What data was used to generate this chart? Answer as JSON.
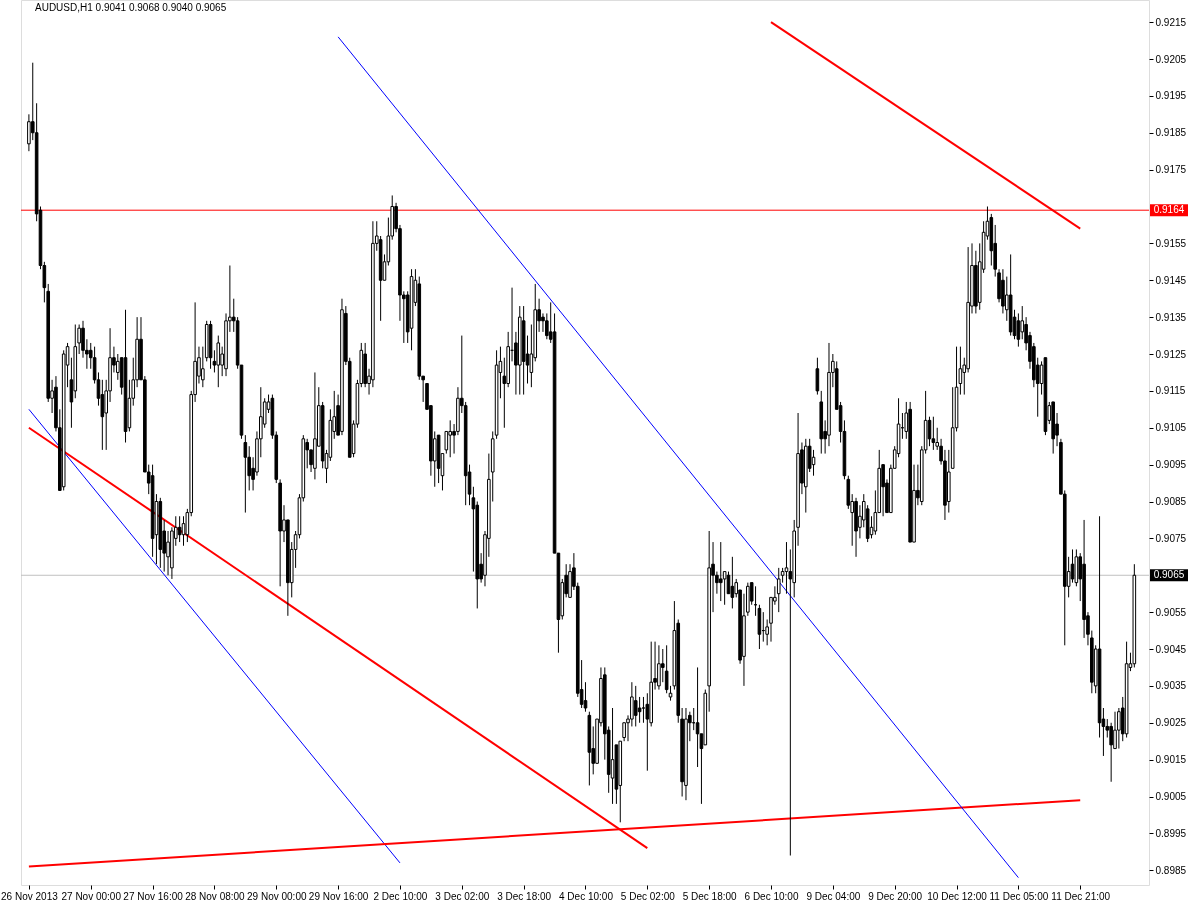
{
  "chart_data": {
    "type": "candlestick",
    "title": "AUDUSD,H1 0.9041 0.9068 0.9040 0.9065",
    "color": "#000000",
    "categories": [
      "26 Nov 2013",
      null,
      null,
      null,
      null,
      null,
      null,
      null,
      null,
      null,
      null,
      null,
      null,
      null,
      null,
      null,
      "27 Nov 00:00",
      null,
      null,
      null,
      null,
      null,
      null,
      null,
      null,
      null,
      null,
      null,
      null,
      null,
      null,
      null,
      "27 Nov 16:00",
      null,
      null,
      null,
      null,
      null,
      null,
      null,
      null,
      null,
      null,
      null,
      null,
      null,
      null,
      null,
      "28 Nov 08:00",
      null,
      null,
      null,
      null,
      null,
      null,
      null,
      null,
      null,
      null,
      null,
      null,
      null,
      null,
      null,
      "29 Nov 00:00",
      null,
      null,
      null,
      null,
      null,
      null,
      null,
      null,
      null,
      null,
      null,
      null,
      null,
      null,
      null,
      "29 Nov 16:00",
      null,
      null,
      null,
      null,
      null,
      null,
      null,
      null,
      null,
      null,
      null,
      null,
      null,
      null,
      null,
      "2 Dec 10:00",
      null,
      null,
      null,
      null,
      null,
      null,
      null,
      null,
      null,
      null,
      null,
      null,
      null,
      null,
      null,
      "3 Dec 02:00",
      null,
      null,
      null,
      null,
      null,
      null,
      null,
      null,
      null,
      null,
      null,
      null,
      null,
      null,
      null,
      "3 Dec 18:00",
      null,
      null,
      null,
      null,
      null,
      null,
      null,
      null,
      null,
      null,
      null,
      null,
      null,
      null,
      null,
      "4 Dec 10:00",
      null,
      null,
      null,
      null,
      null,
      null,
      null,
      null,
      null,
      null,
      null,
      null,
      null,
      null,
      null,
      "5 Dec 02:00",
      null,
      null,
      null,
      null,
      null,
      null,
      null,
      null,
      null,
      null,
      null,
      null,
      null,
      null,
      null,
      "5 Dec 18:00",
      null,
      null,
      null,
      null,
      null,
      null,
      null,
      null,
      null,
      null,
      null,
      null,
      null,
      null,
      null,
      "6 Dec 10:00",
      null,
      null,
      null,
      null,
      null,
      null,
      null,
      null,
      null,
      null,
      null,
      null,
      null,
      null,
      null,
      "9 Dec 04:00",
      null,
      null,
      null,
      null,
      null,
      null,
      null,
      null,
      null,
      null,
      null,
      null,
      null,
      null,
      null,
      "9 Dec 20:00",
      null,
      null,
      null,
      null,
      null,
      null,
      null,
      null,
      null,
      null,
      null,
      null,
      null,
      null,
      null,
      "10 Dec 12:00",
      null,
      null,
      null,
      null,
      null,
      null,
      null,
      null,
      null,
      null,
      null,
      null,
      null,
      null,
      null,
      "11 Dec 05:00",
      null,
      null,
      null,
      null,
      null,
      null,
      null,
      null,
      null,
      null,
      null,
      null,
      null,
      null,
      null,
      "11 Dec 21:00",
      null,
      null,
      null,
      null,
      null,
      null,
      null,
      null,
      null,
      null,
      null,
      null,
      null,
      null
    ],
    "ohlc": [
      [
        0.9182,
        0.919,
        0.918,
        0.9188
      ],
      [
        0.9188,
        0.9204,
        0.9183,
        0.9185
      ],
      [
        0.9185,
        0.9193,
        0.9161,
        0.9163
      ],
      [
        0.9164,
        0.9165,
        0.9148,
        0.9149
      ],
      [
        0.9149,
        0.915,
        0.9139,
        0.9143
      ],
      [
        0.9142,
        0.9144,
        0.9112,
        0.9113
      ],
      [
        0.9113,
        0.9118,
        0.9109,
        0.9115
      ],
      [
        0.9116,
        0.9119,
        0.9104,
        0.9105
      ],
      [
        0.9105,
        0.911,
        0.9088,
        0.9088
      ],
      [
        0.9089,
        0.9126,
        0.9088,
        0.9125
      ],
      [
        0.9122,
        0.9128,
        0.9116,
        0.9127
      ],
      [
        0.9118,
        0.9124,
        0.9105,
        0.9112
      ],
      [
        0.9115,
        0.9133,
        0.9113,
        0.9127
      ],
      [
        0.9128,
        0.9133,
        0.9125,
        0.9132
      ],
      [
        0.9132,
        0.9134,
        0.9124,
        0.9126
      ],
      [
        0.9126,
        0.9129,
        0.9121,
        0.9125
      ],
      [
        0.9126,
        0.9128,
        0.9121,
        0.9124
      ],
      [
        0.9124,
        0.9127,
        0.9117,
        0.9118
      ],
      [
        0.9118,
        0.912,
        0.9111,
        0.9113
      ],
      [
        0.9114,
        0.9118,
        0.9099,
        0.9108
      ],
      [
        0.9109,
        0.9118,
        0.9099,
        0.9115
      ],
      [
        0.9115,
        0.9132,
        0.9112,
        0.9124
      ],
      [
        0.9124,
        0.9127,
        0.912,
        0.9122
      ],
      [
        0.912,
        0.9125,
        0.9118,
        0.9123
      ],
      [
        0.9124,
        0.9124,
        0.9114,
        0.9116
      ],
      [
        0.9124,
        0.9137,
        0.9101,
        0.9104
      ],
      [
        0.9105,
        0.9118,
        0.9104,
        0.9113
      ],
      [
        0.9113,
        0.9124,
        0.9111,
        0.9118
      ],
      [
        0.9118,
        0.9135,
        0.9116,
        0.9129
      ],
      [
        0.9129,
        0.9135,
        0.9118,
        0.9118
      ],
      [
        0.9118,
        0.9119,
        0.9093,
        0.9093
      ],
      [
        0.9093,
        0.9095,
        0.9087,
        0.909
      ],
      [
        0.9092,
        0.9095,
        0.907,
        0.9075
      ],
      [
        0.9076,
        0.9087,
        0.9068,
        0.9085
      ],
      [
        0.9085,
        0.9086,
        0.9067,
        0.9072
      ],
      [
        0.9077,
        0.908,
        0.9066,
        0.9071
      ],
      [
        0.907,
        0.9077,
        0.9065,
        0.9074
      ],
      [
        0.9067,
        0.9078,
        0.9064,
        0.9077
      ],
      [
        0.9075,
        0.9081,
        0.9073,
        0.9078
      ],
      [
        0.9078,
        0.9081,
        0.9074,
        0.9076
      ],
      [
        0.9076,
        0.9081,
        0.9073,
        0.9079
      ],
      [
        0.9076,
        0.9083,
        0.9074,
        0.9082
      ],
      [
        0.9082,
        0.9115,
        0.9081,
        0.9114
      ],
      [
        0.9114,
        0.9139,
        0.9112,
        0.9123
      ],
      [
        0.9119,
        0.9127,
        0.9117,
        0.9124
      ],
      [
        0.9118,
        0.9127,
        0.9116,
        0.9121
      ],
      [
        0.9124,
        0.9134,
        0.9123,
        0.9133
      ],
      [
        0.9133,
        0.9134,
        0.9121,
        0.9124
      ],
      [
        0.9123,
        0.9126,
        0.912,
        0.9122
      ],
      [
        0.9122,
        0.913,
        0.9116,
        0.9128
      ],
      [
        0.9122,
        0.9127,
        0.9119,
        0.9125
      ],
      [
        0.9121,
        0.9136,
        0.9119,
        0.9134
      ],
      [
        0.9134,
        0.9149,
        0.9131,
        0.9135
      ],
      [
        0.9135,
        0.914,
        0.9131,
        0.9134
      ],
      [
        0.9134,
        0.9135,
        0.9121,
        0.9122
      ],
      [
        0.9122,
        0.9122,
        0.9102,
        0.9103
      ],
      [
        0.9101,
        0.9103,
        0.9082,
        0.9097
      ],
      [
        0.9097,
        0.91,
        0.9088,
        0.9092
      ],
      [
        0.9094,
        0.9097,
        0.9088,
        0.9091
      ],
      [
        0.9093,
        0.9104,
        0.9092,
        0.9102
      ],
      [
        0.9102,
        0.9116,
        0.9097,
        0.9108
      ],
      [
        0.9106,
        0.9113,
        0.9105,
        0.9112
      ],
      [
        0.911,
        0.9114,
        0.9109,
        0.9112
      ],
      [
        0.9113,
        0.9114,
        0.9102,
        0.9103
      ],
      [
        0.9103,
        0.9104,
        0.909,
        0.9091
      ],
      [
        0.909,
        0.9091,
        0.9062,
        0.9077
      ],
      [
        0.9077,
        0.9084,
        0.9074,
        0.908
      ],
      [
        0.908,
        0.908,
        0.9054,
        0.9063
      ],
      [
        0.9063,
        0.9074,
        0.9059,
        0.9072
      ],
      [
        0.9072,
        0.9077,
        0.9067,
        0.9076
      ],
      [
        0.9076,
        0.9087,
        0.9075,
        0.9086
      ],
      [
        0.9086,
        0.9103,
        0.9085,
        0.9102
      ],
      [
        0.9101,
        0.9102,
        0.9094,
        0.9099
      ],
      [
        0.9099,
        0.9099,
        0.9093,
        0.9095
      ],
      [
        0.9094,
        0.912,
        0.9091,
        0.9102
      ],
      [
        0.91,
        0.9116,
        0.91,
        0.9111
      ],
      [
        0.9111,
        0.9112,
        0.9094,
        0.9096
      ],
      [
        0.9094,
        0.9099,
        0.909,
        0.9098
      ],
      [
        0.9097,
        0.911,
        0.9096,
        0.9107
      ],
      [
        0.9104,
        0.9115,
        0.9102,
        0.9108
      ],
      [
        0.9111,
        0.9114,
        0.9103,
        0.9103
      ],
      [
        0.9104,
        0.914,
        0.9103,
        0.9137
      ],
      [
        0.9136,
        0.9138,
        0.9122,
        0.9123
      ],
      [
        0.9123,
        0.9124,
        0.9097,
        0.9097
      ],
      [
        0.9098,
        0.9107,
        0.9097,
        0.9106
      ],
      [
        0.9106,
        0.9118,
        0.9105,
        0.9117
      ],
      [
        0.9117,
        0.9128,
        0.9116,
        0.9126
      ],
      [
        0.9125,
        0.9128,
        0.9116,
        0.9117
      ],
      [
        0.9117,
        0.9121,
        0.9114,
        0.9119
      ],
      [
        0.9118,
        0.9161,
        0.9116,
        0.9155
      ],
      [
        0.9155,
        0.9161,
        0.9153,
        0.9157
      ],
      [
        0.9156,
        0.9157,
        0.9134,
        0.9145
      ],
      [
        0.9145,
        0.9152,
        0.9145,
        0.915
      ],
      [
        0.915,
        0.9162,
        0.9149,
        0.9157
      ],
      [
        0.9157,
        0.9168,
        0.9156,
        0.9165
      ],
      [
        0.9165,
        0.9166,
        0.9158,
        0.9159
      ],
      [
        0.9159,
        0.916,
        0.9134,
        0.9141
      ],
      [
        0.9141,
        0.9142,
        0.9128,
        0.914
      ],
      [
        0.9141,
        0.9142,
        0.9128,
        0.9131
      ],
      [
        0.9132,
        0.9148,
        0.9126,
        0.9146
      ],
      [
        0.9139,
        0.9148,
        0.9138,
        0.9145
      ],
      [
        0.9144,
        0.9146,
        0.9118,
        0.9119
      ],
      [
        0.9119,
        0.9119,
        0.9112,
        0.9118
      ],
      [
        0.9117,
        0.9117,
        0.911,
        0.911
      ],
      [
        0.9111,
        0.9111,
        0.9092,
        0.9096
      ],
      [
        0.9096,
        0.9104,
        0.9089,
        0.9102
      ],
      [
        0.9103,
        0.9103,
        0.909,
        0.9094
      ],
      [
        0.9092,
        0.9098,
        0.9088,
        0.9098
      ],
      [
        0.9099,
        0.9104,
        0.9098,
        0.9104
      ],
      [
        0.9103,
        0.9107,
        0.9097,
        0.9104
      ],
      [
        0.9104,
        0.9106,
        0.9098,
        0.9103
      ],
      [
        0.9104,
        0.9116,
        0.9103,
        0.9113
      ],
      [
        0.9113,
        0.913,
        0.9109,
        0.9111
      ],
      [
        0.9111,
        0.9112,
        0.9084,
        0.9092
      ],
      [
        0.9093,
        0.9095,
        0.9084,
        0.9087
      ],
      [
        0.9086,
        0.9089,
        0.9066,
        0.9083
      ],
      [
        0.9084,
        0.9085,
        0.9056,
        0.9064
      ],
      [
        0.9068,
        0.9071,
        0.9063,
        0.9064
      ],
      [
        0.9065,
        0.9077,
        0.9062,
        0.9076
      ],
      [
        0.9075,
        0.9098,
        0.907,
        0.9091
      ],
      [
        0.9093,
        0.9104,
        0.9085,
        0.9102
      ],
      [
        0.9103,
        0.9126,
        0.9102,
        0.9122
      ],
      [
        0.912,
        0.9127,
        0.9113,
        0.9123
      ],
      [
        0.9119,
        0.9124,
        0.9105,
        0.9117
      ],
      [
        0.9117,
        0.9131,
        0.9116,
        0.9127
      ],
      [
        0.9126,
        0.9143,
        0.9123,
        0.9126
      ],
      [
        0.9128,
        0.9131,
        0.9114,
        0.9122
      ],
      [
        0.9122,
        0.9138,
        0.9114,
        0.9135
      ],
      [
        0.9134,
        0.9138,
        0.9114,
        0.9123
      ],
      [
        0.9125,
        0.913,
        0.9117,
        0.9122
      ],
      [
        0.912,
        0.9133,
        0.9116,
        0.9125
      ],
      [
        0.9124,
        0.9144,
        0.9123,
        0.9137
      ],
      [
        0.9137,
        0.914,
        0.9131,
        0.9134
      ],
      [
        0.9135,
        0.9136,
        0.9131,
        0.9134
      ],
      [
        0.9134,
        0.9136,
        0.9129,
        0.913
      ],
      [
        0.9131,
        0.9139,
        0.9128,
        0.9129
      ],
      [
        0.9131,
        0.9136,
        0.9071,
        0.9071
      ],
      [
        0.9071,
        0.9071,
        0.9044,
        0.9053
      ],
      [
        0.9054,
        0.9064,
        0.9053,
        0.9063
      ],
      [
        0.9065,
        0.9068,
        0.9059,
        0.906
      ],
      [
        0.9059,
        0.9068,
        0.9059,
        0.9066
      ],
      [
        0.9067,
        0.9071,
        0.9061,
        0.9062
      ],
      [
        0.9062,
        0.9063,
        0.9032,
        0.9033
      ],
      [
        0.9034,
        0.9042,
        0.9029,
        0.903
      ],
      [
        0.9031,
        0.9036,
        0.9028,
        0.9029
      ],
      [
        0.9027,
        0.9028,
        0.9008,
        0.9017
      ],
      [
        0.9018,
        0.9024,
        0.9011,
        0.9014
      ],
      [
        0.9014,
        0.9026,
        0.9014,
        0.9026
      ],
      [
        0.9025,
        0.904,
        0.9024,
        0.9037
      ],
      [
        0.9038,
        0.904,
        0.9015,
        0.9022
      ],
      [
        0.9023,
        0.9024,
        0.9006,
        0.9011
      ],
      [
        0.901,
        0.9029,
        0.9003,
        0.9015
      ],
      [
        0.9019,
        0.9019,
        0.9003,
        0.9007
      ],
      [
        0.9008,
        0.902,
        0.8998,
        0.902
      ],
      [
        0.9021,
        0.9025,
        0.902,
        0.9025
      ],
      [
        0.9025,
        0.9027,
        0.902,
        0.9026
      ],
      [
        0.9026,
        0.9036,
        0.9024,
        0.9032
      ],
      [
        0.9031,
        0.9035,
        0.9024,
        0.9027
      ],
      [
        0.9029,
        0.9032,
        0.9025,
        0.9028
      ],
      [
        0.9029,
        0.9032,
        0.9025,
        0.9029
      ],
      [
        0.903,
        0.9033,
        0.9012,
        0.9026
      ],
      [
        0.9025,
        0.9047,
        0.9024,
        0.9036
      ],
      [
        0.9037,
        0.9047,
        0.9034,
        0.9036
      ],
      [
        0.9035,
        0.9046,
        0.9034,
        0.9041
      ],
      [
        0.9041,
        0.9045,
        0.9036,
        0.904
      ],
      [
        0.9039,
        0.9046,
        0.9033,
        0.9034
      ],
      [
        0.9032,
        0.9035,
        0.9031,
        0.9033
      ],
      [
        0.9035,
        0.9058,
        0.9034,
        0.905
      ],
      [
        0.9052,
        0.9053,
        0.9025,
        0.9027
      ],
      [
        0.9026,
        0.9029,
        0.9005,
        0.9009
      ],
      [
        0.9008,
        0.9029,
        0.9004,
        0.9026
      ],
      [
        0.9027,
        0.9028,
        0.902,
        0.9025
      ],
      [
        0.9025,
        0.9029,
        0.9023,
        0.9025
      ],
      [
        0.9025,
        0.904,
        0.9013,
        0.9022
      ],
      [
        0.9022,
        0.9022,
        0.9003,
        0.9018
      ],
      [
        0.9019,
        0.9034,
        0.9019,
        0.9033
      ],
      [
        0.9035,
        0.9077,
        0.9028,
        0.9067
      ],
      [
        0.9068,
        0.9074,
        0.9055,
        0.9065
      ],
      [
        0.9065,
        0.9066,
        0.906,
        0.9063
      ],
      [
        0.9064,
        0.9074,
        0.9058,
        0.9063
      ],
      [
        0.9064,
        0.9066,
        0.9057,
        0.9066
      ],
      [
        0.9065,
        0.9066,
        0.906,
        0.906
      ],
      [
        0.9062,
        0.907,
        0.9056,
        0.9059
      ],
      [
        0.906,
        0.9064,
        0.9059,
        0.9063
      ],
      [
        0.9061,
        0.9061,
        0.9041,
        0.9042
      ],
      [
        0.9043,
        0.906,
        0.9035,
        0.9054
      ],
      [
        0.9055,
        0.9063,
        0.9054,
        0.9062
      ],
      [
        0.9063,
        0.9063,
        0.9057,
        0.9058
      ],
      [
        0.9057,
        0.9062,
        0.9054,
        0.9057
      ],
      [
        0.9056,
        0.9057,
        0.9045,
        0.9049
      ],
      [
        0.905,
        0.9055,
        0.9047,
        0.905
      ],
      [
        0.9049,
        0.9053,
        0.9046,
        0.9051
      ],
      [
        0.9052,
        0.9059,
        0.9047,
        0.9059
      ],
      [
        0.9058,
        0.9062,
        0.9057,
        0.9059
      ],
      [
        0.906,
        0.9067,
        0.9055,
        0.9064
      ],
      [
        0.9065,
        0.9067,
        0.9063,
        0.9066
      ],
      [
        0.9066,
        0.9074,
        0.906,
        0.9067
      ],
      [
        0.9066,
        0.9072,
        0.8989,
        0.9064
      ],
      [
        0.9063,
        0.908,
        0.9059,
        0.9077
      ],
      [
        0.9078,
        0.9109,
        0.9073,
        0.9098
      ],
      [
        0.9099,
        0.9101,
        0.9087,
        0.909
      ],
      [
        0.9089,
        0.9102,
        0.9082,
        0.91
      ],
      [
        0.91,
        0.9102,
        0.9093,
        0.9094
      ],
      [
        0.9095,
        0.9099,
        0.9092,
        0.9097
      ],
      [
        0.9121,
        0.9124,
        0.9114,
        0.9115
      ],
      [
        0.9112,
        0.9115,
        0.9098,
        0.9102
      ],
      [
        0.9104,
        0.9107,
        0.9098,
        0.9102
      ],
      [
        0.9103,
        0.9128,
        0.91,
        0.912
      ],
      [
        0.912,
        0.9125,
        0.9116,
        0.9123
      ],
      [
        0.9121,
        0.9123,
        0.911,
        0.911
      ],
      [
        0.9111,
        0.9112,
        0.9101,
        0.9104
      ],
      [
        0.9104,
        0.9107,
        0.9091,
        0.9092
      ],
      [
        0.9091,
        0.9092,
        0.9083,
        0.9084
      ],
      [
        0.9082,
        0.9087,
        0.9073,
        0.9085
      ],
      [
        0.9085,
        0.9086,
        0.907,
        0.9077
      ],
      [
        0.9078,
        0.9084,
        0.9075,
        0.9081
      ],
      [
        0.908,
        0.9087,
        0.9078,
        0.9085
      ],
      [
        0.9083,
        0.9084,
        0.9074,
        0.9075
      ],
      [
        0.9076,
        0.9081,
        0.9075,
        0.9078
      ],
      [
        0.9077,
        0.9088,
        0.9076,
        0.9082
      ],
      [
        0.9082,
        0.9099,
        0.9082,
        0.9094
      ],
      [
        0.9095,
        0.9095,
        0.9081,
        0.9089
      ],
      [
        0.909,
        0.9091,
        0.9082,
        0.9082
      ],
      [
        0.9082,
        0.9095,
        0.9082,
        0.9094
      ],
      [
        0.9094,
        0.91,
        0.9094,
        0.9099
      ],
      [
        0.9098,
        0.9113,
        0.9097,
        0.9106
      ],
      [
        0.9105,
        0.9109,
        0.9102,
        0.9105
      ],
      [
        0.9104,
        0.9112,
        0.9102,
        0.9109
      ],
      [
        0.911,
        0.9112,
        0.9074,
        0.9074
      ],
      [
        0.9074,
        0.9095,
        0.9074,
        0.9088
      ],
      [
        0.9088,
        0.9095,
        0.9084,
        0.9086
      ],
      [
        0.9085,
        0.91,
        0.9084,
        0.9099
      ],
      [
        0.9099,
        0.9115,
        0.9098,
        0.9107
      ],
      [
        0.9107,
        0.9108,
        0.91,
        0.9102
      ],
      [
        0.9102,
        0.9108,
        0.9099,
        0.9101
      ],
      [
        0.91,
        0.9105,
        0.9099,
        0.9101
      ],
      [
        0.91,
        0.9102,
        0.9095,
        0.9096
      ],
      [
        0.9096,
        0.9099,
        0.908,
        0.9084
      ],
      [
        0.9085,
        0.9099,
        0.9082,
        0.9093
      ],
      [
        0.9094,
        0.9116,
        0.9094,
        0.9105
      ],
      [
        0.9105,
        0.9127,
        0.9104,
        0.9116
      ],
      [
        0.9117,
        0.9127,
        0.9114,
        0.9121
      ],
      [
        0.912,
        0.9124,
        0.9114,
        0.9122
      ],
      [
        0.9121,
        0.9154,
        0.912,
        0.9139
      ],
      [
        0.9138,
        0.9155,
        0.9136,
        0.9149
      ],
      [
        0.9149,
        0.9153,
        0.9136,
        0.9138
      ],
      [
        0.9139,
        0.9155,
        0.9137,
        0.915
      ],
      [
        0.9148,
        0.9161,
        0.9147,
        0.9158
      ],
      [
        0.9157,
        0.9165,
        0.9156,
        0.9161
      ],
      [
        0.9162,
        0.9163,
        0.9149,
        0.9153
      ],
      [
        0.9155,
        0.916,
        0.9146,
        0.9148
      ],
      [
        0.9147,
        0.9148,
        0.9139,
        0.914
      ],
      [
        0.9145,
        0.9148,
        0.9136,
        0.9138
      ],
      [
        0.9137,
        0.9146,
        0.9134,
        0.9141
      ],
      [
        0.9141,
        0.9152,
        0.913,
        0.9131
      ],
      [
        0.9135,
        0.9137,
        0.9129,
        0.913
      ],
      [
        0.9134,
        0.9136,
        0.9127,
        0.9129
      ],
      [
        0.9131,
        0.9138,
        0.9129,
        0.9134
      ],
      [
        0.9133,
        0.9135,
        0.9126,
        0.9128
      ],
      [
        0.913,
        0.9131,
        0.9121,
        0.9123
      ],
      [
        0.9127,
        0.9128,
        0.9116,
        0.9118
      ],
      [
        0.9122,
        0.9124,
        0.9108,
        0.9117
      ],
      [
        0.9117,
        0.9123,
        0.9114,
        0.9122
      ],
      [
        0.9124,
        0.9124,
        0.9103,
        0.9104
      ],
      [
        0.9107,
        0.9112,
        0.9106,
        0.9111
      ],
      [
        0.9112,
        0.9112,
        0.9098,
        0.9102
      ],
      [
        0.9106,
        0.9109,
        0.91,
        0.9103
      ],
      [
        0.9101,
        0.9102,
        0.9087,
        0.9087
      ],
      [
        0.9087,
        0.9088,
        0.9046,
        0.9062
      ],
      [
        0.9062,
        0.907,
        0.9059,
        0.9066
      ],
      [
        0.9068,
        0.9072,
        0.9063,
        0.9064
      ],
      [
        0.9063,
        0.9072,
        0.9062,
        0.907
      ],
      [
        0.907,
        0.9071,
        0.9058,
        0.9064
      ],
      [
        0.9068,
        0.908,
        0.9048,
        0.9053
      ],
      [
        0.9054,
        0.9055,
        0.9046,
        0.9049
      ],
      [
        0.9048,
        0.905,
        0.9033,
        0.9036
      ],
      [
        0.9035,
        0.9046,
        0.9033,
        0.9045
      ],
      [
        0.9045,
        0.9081,
        0.9021,
        0.9025
      ],
      [
        0.9026,
        0.9029,
        0.9016,
        0.9024
      ],
      [
        0.9024,
        0.9026,
        0.9021,
        0.9023
      ],
      [
        0.9024,
        0.9025,
        0.9009,
        0.9019
      ],
      [
        0.9018,
        0.9028,
        0.9018,
        0.9023
      ],
      [
        0.9023,
        0.9029,
        0.9018,
        0.9028
      ],
      [
        0.9029,
        0.9032,
        0.902,
        0.9022
      ],
      [
        0.9022,
        0.9047,
        0.9021,
        0.9041
      ],
      [
        0.904,
        0.9044,
        0.9039,
        0.9041
      ],
      [
        0.9041,
        0.9068,
        0.904,
        0.9065
      ]
    ],
    "series": [
      {
        "type": "line",
        "color": "#0000ff",
        "x": [
          "26 Nov 2013",
          "2 Dec 10:00"
        ],
        "values": [
          0.911,
          0.8987
        ]
      },
      {
        "type": "line",
        "color": "#ff0000",
        "x": [
          "26 Nov 2013",
          "5 Dec 02:00"
        ],
        "values": [
          0.9105,
          0.8991
        ]
      },
      {
        "type": "line",
        "color": "#ff0000",
        "x": [
          "26 Nov 2013",
          "11 Dec 21:00"
        ],
        "values": [
          0.8986,
          0.9004
        ]
      },
      {
        "type": "line",
        "color": "#0000ff",
        "x": [
          "29 Nov 16:00",
          "11 Dec 05:00"
        ],
        "values": [
          0.9211,
          0.8983
        ]
      },
      {
        "type": "line",
        "color": "#ff0000",
        "x": [
          "6 Dec 10:00",
          "11 Dec 21:00"
        ],
        "values": [
          0.9215,
          0.9159
        ]
      }
    ],
    "ref_lines": [
      {
        "axis": "y",
        "value": 0.9164,
        "label": "0.9164",
        "color": "#ff0000"
      },
      {
        "axis": "y",
        "value": 0.9065,
        "label": "0.9065",
        "color": "#c0c0c0"
      }
    ],
    "ylim": [
      0.8981,
      0.9221
    ],
    "yticks": [
      0.8985,
      0.8995,
      0.9005,
      0.9015,
      0.9025,
      0.9035,
      0.9045,
      0.9055,
      0.9075,
      0.9085,
      0.9095,
      0.9105,
      0.9115,
      0.9125,
      0.9135,
      0.9145,
      0.9155,
      0.9175,
      0.9185,
      0.9195,
      0.9205,
      0.9215
    ]
  }
}
